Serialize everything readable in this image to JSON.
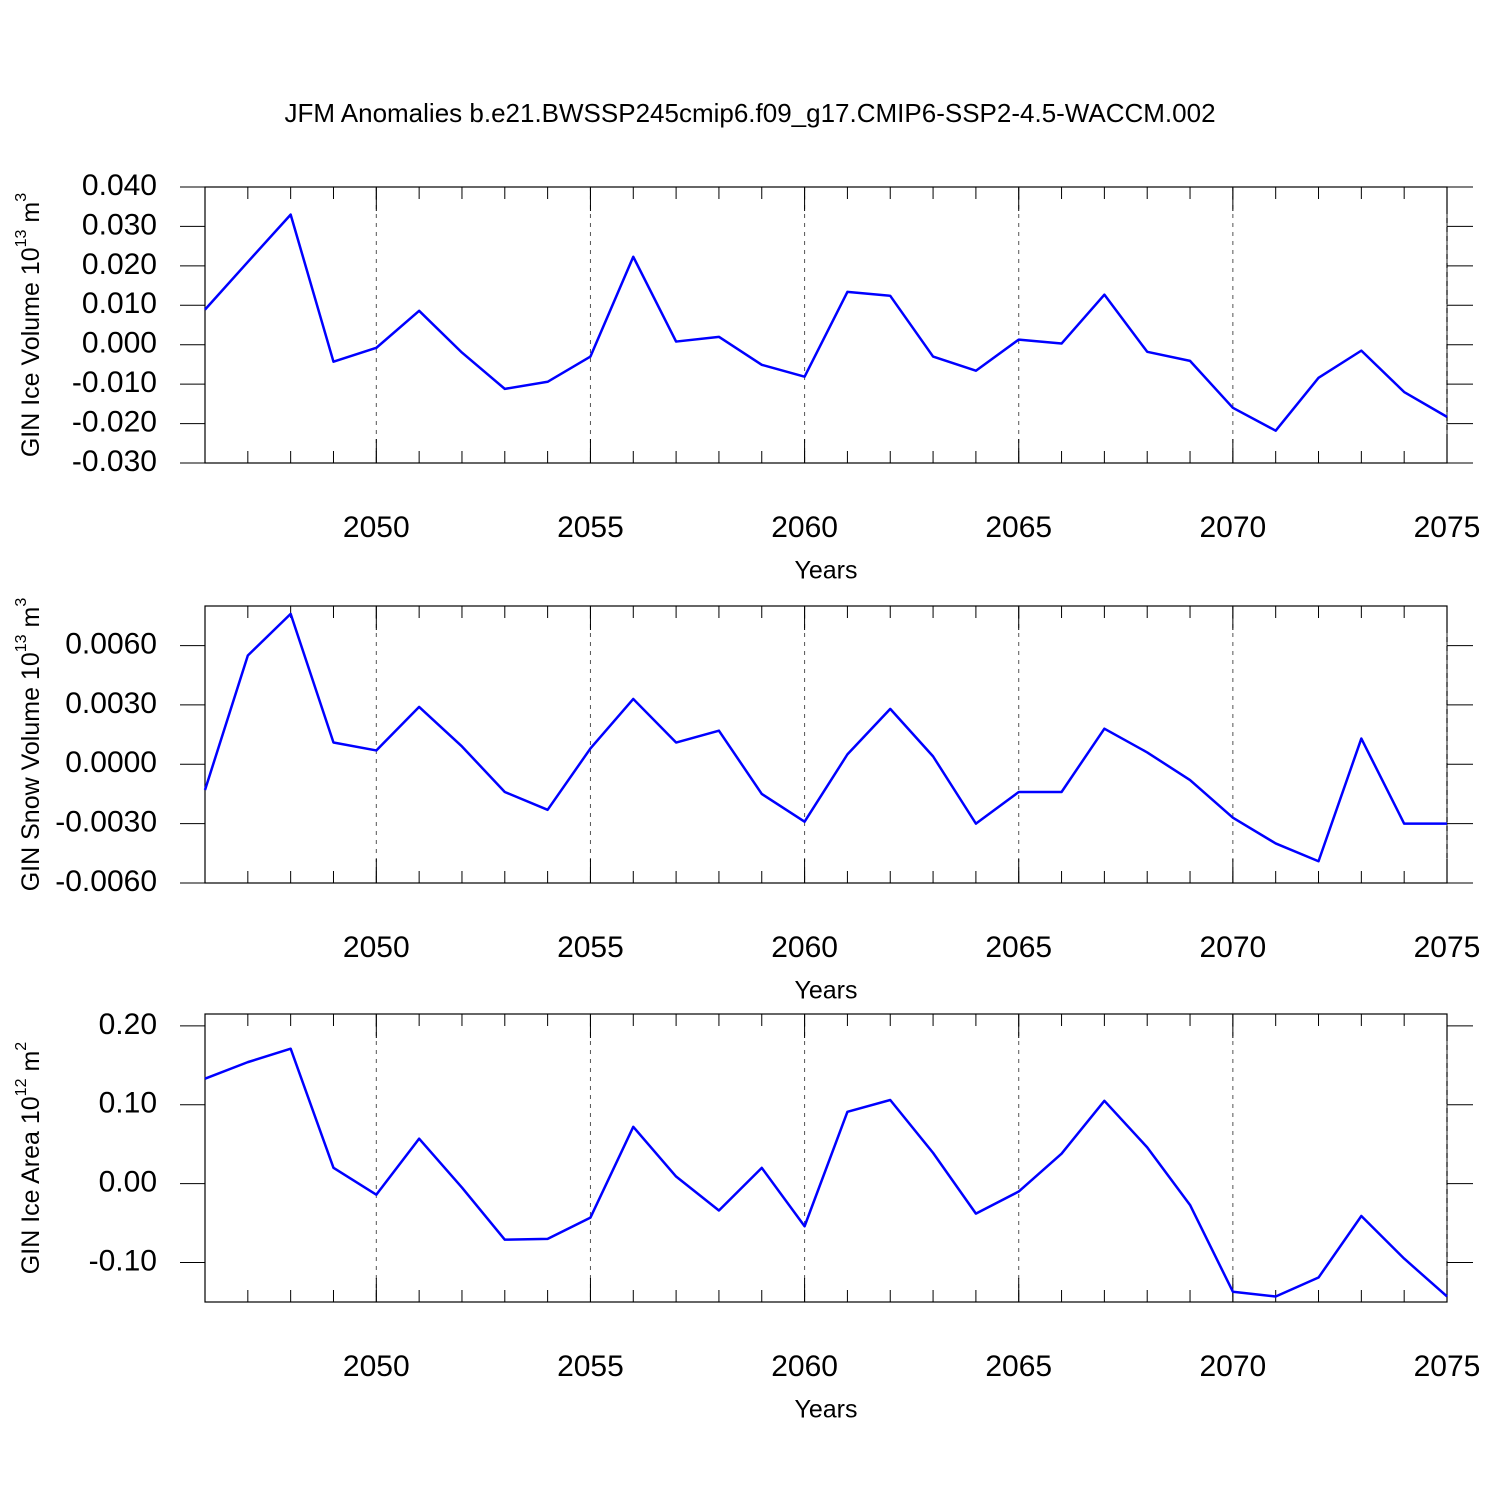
{
  "title": "JFM Anomalies b.e21.BWSSP245cmip6.f09_g17.CMIP6-SSP2-4.5-WACCM.002",
  "chart_data": [
    {
      "type": "line",
      "xlabel": "Years",
      "ylabel": [
        "GIN Ice Volume 10",
        "13",
        "m",
        "3"
      ],
      "x": [
        2046,
        2047,
        2048,
        2049,
        2050,
        2051,
        2052,
        2053,
        2054,
        2055,
        2056,
        2057,
        2058,
        2059,
        2060,
        2061,
        2062,
        2063,
        2064,
        2065,
        2066,
        2067,
        2068,
        2069,
        2070,
        2071,
        2072,
        2073,
        2074,
        2075
      ],
      "series": [
        {
          "color": "#0000ff",
          "values": [
            0.0089,
            0.021,
            0.033,
            -0.0043,
            -0.0008,
            0.0086,
            -0.002,
            -0.0112,
            -0.0094,
            -0.003,
            0.0223,
            0.0008,
            0.002,
            -0.0051,
            -0.0081,
            0.0134,
            0.0124,
            -0.003,
            -0.0066,
            0.0013,
            0.0003,
            0.0127,
            -0.0018,
            -0.0041,
            -0.016,
            -0.0218,
            -0.0084,
            -0.0015,
            -0.012,
            -0.0183
          ]
        }
      ],
      "xlim": [
        2046,
        2075
      ],
      "xticks": [
        2050,
        2055,
        2060,
        2065,
        2070,
        2075
      ],
      "ylim": [
        -0.03,
        0.04
      ],
      "yticks": [
        {
          "value": 0.04,
          "label": "0.040"
        },
        {
          "value": 0.03,
          "label": "0.030"
        },
        {
          "value": 0.02,
          "label": "0.020"
        },
        {
          "value": 0.01,
          "label": "0.010"
        },
        {
          "value": 0,
          "label": "0.000"
        },
        {
          "value": -0.01,
          "label": "-0.010"
        },
        {
          "value": -0.02,
          "label": "-0.020"
        },
        {
          "value": -0.03,
          "label": "-0.030"
        }
      ],
      "grid": "x"
    },
    {
      "type": "line",
      "xlabel": "Years",
      "ylabel": [
        "GIN Snow Volume 10",
        "13",
        "m",
        "3"
      ],
      "x": [
        2046,
        2047,
        2048,
        2049,
        2050,
        2051,
        2052,
        2053,
        2054,
        2055,
        2056,
        2057,
        2058,
        2059,
        2060,
        2061,
        2062,
        2063,
        2064,
        2065,
        2066,
        2067,
        2068,
        2069,
        2070,
        2071,
        2072,
        2073,
        2074,
        2075
      ],
      "series": [
        {
          "color": "#0000ff",
          "values": [
            -0.0013,
            0.0055,
            0.0076,
            0.0011,
            0.0007,
            0.0029,
            0.0009,
            -0.0014,
            -0.0023,
            0.0008,
            0.0033,
            0.0011,
            0.0017,
            -0.0015,
            -0.0029,
            0.0005,
            0.0028,
            0.0004,
            -0.003,
            -0.0014,
            -0.0014,
            0.0018,
            0.0006,
            -0.0008,
            -0.0027,
            -0.004,
            -0.0049,
            0.0013,
            -0.003,
            -0.003
          ]
        }
      ],
      "xlim": [
        2046,
        2075
      ],
      "xticks": [
        2050,
        2055,
        2060,
        2065,
        2070,
        2075
      ],
      "ylim": [
        -0.006,
        0.008
      ],
      "yticks": [
        {
          "value": 0.006,
          "label": "0.0060"
        },
        {
          "value": 0.003,
          "label": "0.0030"
        },
        {
          "value": 0,
          "label": "0.0000"
        },
        {
          "value": -0.003,
          "label": "-0.0030"
        },
        {
          "value": -0.006,
          "label": "-0.0060"
        }
      ],
      "grid": "x"
    },
    {
      "type": "line",
      "xlabel": "Years",
      "ylabel": [
        "GIN Ice Area 10",
        "12",
        "m",
        "2"
      ],
      "x": [
        2046,
        2047,
        2048,
        2049,
        2050,
        2051,
        2052,
        2053,
        2054,
        2055,
        2056,
        2057,
        2058,
        2059,
        2060,
        2061,
        2062,
        2063,
        2064,
        2065,
        2066,
        2067,
        2068,
        2069,
        2070,
        2071,
        2072,
        2073,
        2074,
        2075
      ],
      "series": [
        {
          "color": "#0000ff",
          "values": [
            0.133,
            0.154,
            0.171,
            0.02,
            -0.014,
            0.057,
            -0.005,
            -0.071,
            -0.07,
            -0.043,
            0.072,
            0.009,
            -0.034,
            0.02,
            -0.054,
            0.091,
            0.106,
            0.039,
            -0.038,
            -0.01,
            0.038,
            0.105,
            0.046,
            -0.027,
            -0.137,
            -0.143,
            -0.119,
            -0.041,
            -0.095,
            -0.143
          ]
        }
      ],
      "xlim": [
        2046,
        2075
      ],
      "xticks": [
        2050,
        2055,
        2060,
        2065,
        2070,
        2075
      ],
      "ylim": [
        -0.15,
        0.215
      ],
      "yticks": [
        {
          "value": 0.2,
          "label": "0.20"
        },
        {
          "value": 0.1,
          "label": "0.10"
        },
        {
          "value": 0,
          "label": "0.00"
        },
        {
          "value": -0.1,
          "label": "-0.10"
        }
      ],
      "grid": "x"
    }
  ]
}
